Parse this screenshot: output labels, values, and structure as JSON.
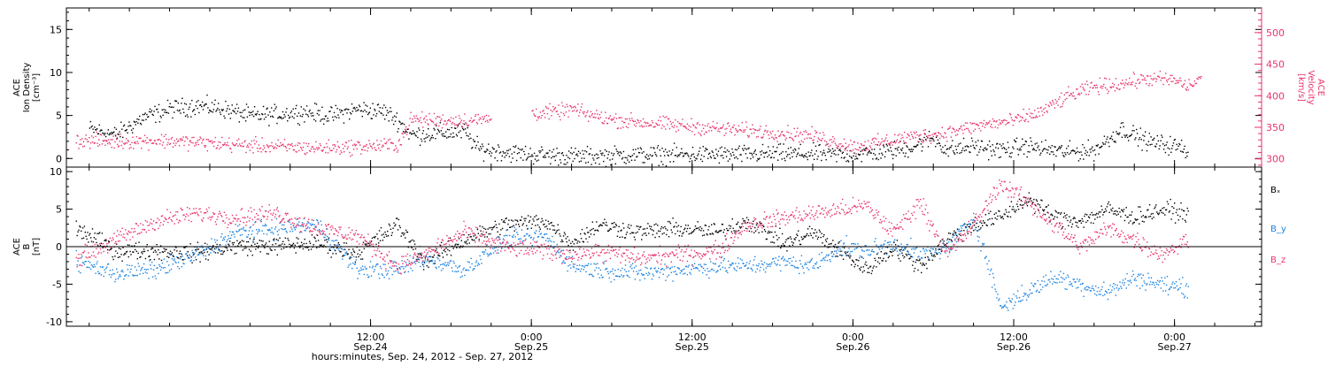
{
  "colors": {
    "black": "#000000",
    "pink": "#e8336a",
    "blue": "#1a82e0",
    "axis": "#000000"
  },
  "time_axis": {
    "label": "hours:minutes, Sep. 24, 2012 - Sep. 27, 2012",
    "start_hour": 0,
    "end_hour": 0,
    "ticks": [
      {
        "hour": 12,
        "time": "12:00",
        "date": "Sep.24"
      },
      {
        "hour": 24,
        "time": "0:00",
        "date": "Sep.25"
      },
      {
        "hour": 36,
        "time": "12:00",
        "date": "Sep.25"
      },
      {
        "hour": 48,
        "time": "0:00",
        "date": "Sep.26"
      },
      {
        "hour": 60,
        "time": "12:00",
        "date": "Sep.26"
      },
      {
        "hour": 72,
        "time": "0:00",
        "date": "Sep.27"
      }
    ]
  },
  "chart_data": [
    {
      "type": "scatter",
      "panel": "top",
      "x_domain_hours": [
        -10.7,
        78.5
      ],
      "left_axis": {
        "label_lines": [
          "ACE",
          "Ion Density",
          "[cm⁻³]"
        ],
        "ylim": [
          -1,
          17.5
        ],
        "ticks": [
          0,
          5,
          10,
          15
        ]
      },
      "right_axis": {
        "label_lines": [
          "ACE",
          "Velocity",
          "[km/s]"
        ],
        "ylim": [
          287,
          539
        ],
        "ticks": [
          300,
          350,
          400,
          450,
          500
        ]
      },
      "series": [
        {
          "name": "",
          "axis": "left",
          "color": "black",
          "points": [
            [
              -9,
              3.5
            ],
            [
              -7,
              2.8
            ],
            [
              -5,
              4.8
            ],
            [
              -3,
              5.8
            ],
            [
              -1,
              6.2
            ],
            [
              1,
              5.8
            ],
            [
              3,
              5.0
            ],
            [
              5,
              5.2
            ],
            [
              7,
              5.5
            ],
            [
              9,
              5.0
            ],
            [
              11,
              5.8
            ],
            [
              13,
              5.5
            ],
            [
              14,
              4.5
            ],
            [
              15,
              2.8
            ],
            [
              17,
              3.0
            ],
            [
              19,
              3.2
            ],
            [
              20,
              1.2
            ],
            [
              22,
              0.8
            ],
            [
              24,
              0.5
            ],
            [
              26,
              0.4
            ],
            [
              27,
              0.3
            ],
            [
              28,
              0.3
            ],
            [
              30,
              0.4
            ],
            [
              33,
              0.5
            ],
            [
              36,
              0.5
            ],
            [
              39,
              0.5
            ],
            [
              42,
              0.6
            ],
            [
              45,
              0.6
            ],
            [
              48,
              0.5
            ],
            [
              50,
              0.8
            ],
            [
              52,
              1.2
            ],
            [
              54,
              2.5
            ],
            [
              55,
              1.0
            ],
            [
              57,
              1.5
            ],
            [
              59,
              1.0
            ],
            [
              61,
              1.5
            ],
            [
              62,
              1.2
            ],
            [
              64,
              0.8
            ],
            [
              66,
              1.0
            ],
            [
              68,
              3.5
            ],
            [
              70,
              2.0
            ],
            [
              72,
              1.5
            ],
            [
              73,
              1.0
            ]
          ]
        },
        {
          "name": "",
          "axis": "right",
          "color": "pink",
          "points": [
            [
              -10,
              330
            ],
            [
              -7,
              328
            ],
            [
              -4,
              330
            ],
            [
              -1,
              327
            ],
            [
              2,
              323
            ],
            [
              5,
              320
            ],
            [
              8,
              318
            ],
            [
              11,
              320
            ],
            [
              14,
              323
            ],
            [
              15,
              363
            ],
            [
              17,
              362
            ],
            [
              20,
              362
            ],
            [
              23,
              372
            ],
            [
              26,
              375
            ],
            [
              27,
              380
            ],
            [
              28,
              372
            ],
            [
              30,
              363
            ],
            [
              33,
              357
            ],
            [
              36,
              352
            ],
            [
              39,
              347
            ],
            [
              42,
              343
            ],
            [
              45,
              337
            ],
            [
              48,
              320
            ],
            [
              50,
              327
            ],
            [
              52,
              335
            ],
            [
              54,
              339
            ],
            [
              56,
              347
            ],
            [
              58,
              356
            ],
            [
              60,
              361
            ],
            [
              62,
              375
            ],
            [
              64,
              400
            ],
            [
              66,
              415
            ],
            [
              68,
              420
            ],
            [
              70,
              428
            ],
            [
              72,
              425
            ],
            [
              73,
              415
            ],
            [
              74,
              430
            ]
          ]
        }
      ]
    },
    {
      "type": "scatter",
      "panel": "bottom",
      "x_domain_hours": [
        -10.7,
        78.5
      ],
      "left_axis": {
        "label_lines": [
          "ACE",
          "B",
          "[nT]"
        ],
        "ylim": [
          -10.6,
          10.6
        ],
        "ticks": [
          -10,
          -5,
          0,
          5,
          10
        ]
      },
      "series": [
        {
          "name": "Bₓ",
          "color": "black",
          "points": [
            [
              -10,
              2.5
            ],
            [
              -7,
              -0.5
            ],
            [
              -4,
              -0.5
            ],
            [
              -1,
              -0.8
            ],
            [
              2,
              0.2
            ],
            [
              5,
              0.2
            ],
            [
              8,
              0.5
            ],
            [
              11,
              -0.8
            ],
            [
              14,
              3.0
            ],
            [
              16,
              -2.0
            ],
            [
              19,
              1.0
            ],
            [
              22,
              3.0
            ],
            [
              25,
              3.5
            ],
            [
              27,
              0.5
            ],
            [
              29,
              3.0
            ],
            [
              32,
              2.0
            ],
            [
              35,
              2.5
            ],
            [
              38,
              2.0
            ],
            [
              40,
              3.5
            ],
            [
              43,
              0.5
            ],
            [
              45,
              2.0
            ],
            [
              47,
              -0.5
            ],
            [
              49,
              -3.0
            ],
            [
              51,
              0.0
            ],
            [
              53,
              -2.5
            ],
            [
              55,
              1.0
            ],
            [
              57,
              3.0
            ],
            [
              59,
              4.0
            ],
            [
              61,
              6.5
            ],
            [
              63,
              4.0
            ],
            [
              65,
              3.5
            ],
            [
              67,
              5.0
            ],
            [
              69,
              4.0
            ],
            [
              71,
              5.0
            ],
            [
              73,
              4.5
            ]
          ]
        },
        {
          "name": "B_y",
          "color": "blue",
          "points": [
            [
              -10,
              -2.0
            ],
            [
              -7,
              -3.5
            ],
            [
              -4,
              -3.0
            ],
            [
              -1,
              -1.0
            ],
            [
              2,
              2.0
            ],
            [
              5,
              2.5
            ],
            [
              8,
              3.0
            ],
            [
              11,
              -3.0
            ],
            [
              14,
              -3.0
            ],
            [
              16,
              -1.5
            ],
            [
              19,
              -3.0
            ],
            [
              22,
              1.0
            ],
            [
              25,
              1.5
            ],
            [
              27,
              -2.5
            ],
            [
              29,
              -3.0
            ],
            [
              32,
              -3.5
            ],
            [
              35,
              -3.0
            ],
            [
              38,
              -2.5
            ],
            [
              40,
              -2.5
            ],
            [
              43,
              -2.0
            ],
            [
              45,
              -2.5
            ],
            [
              47,
              0.0
            ],
            [
              49,
              -0.5
            ],
            [
              51,
              0.5
            ],
            [
              53,
              -1.0
            ],
            [
              55,
              0.0
            ],
            [
              57,
              4.0
            ],
            [
              59,
              -8.0
            ],
            [
              61,
              -6.0
            ],
            [
              63,
              -4.0
            ],
            [
              65,
              -5.0
            ],
            [
              67,
              -6.0
            ],
            [
              69,
              -4.0
            ],
            [
              71,
              -5.0
            ],
            [
              73,
              -5.5
            ]
          ]
        },
        {
          "name": "B_z",
          "color": "pink",
          "points": [
            [
              -10,
              -1.5
            ],
            [
              -7,
              1.0
            ],
            [
              -4,
              3.5
            ],
            [
              -1,
              4.5
            ],
            [
              2,
              4.0
            ],
            [
              5,
              4.5
            ],
            [
              8,
              2.5
            ],
            [
              11,
              1.5
            ],
            [
              14,
              -2.5
            ],
            [
              16,
              -1.0
            ],
            [
              19,
              2.0
            ],
            [
              22,
              0.0
            ],
            [
              25,
              -0.5
            ],
            [
              27,
              -1.0
            ],
            [
              29,
              -0.5
            ],
            [
              32,
              -1.5
            ],
            [
              35,
              -1.0
            ],
            [
              38,
              -0.5
            ],
            [
              40,
              3.0
            ],
            [
              43,
              4.0
            ],
            [
              45,
              4.5
            ],
            [
              47,
              5.0
            ],
            [
              49,
              5.5
            ],
            [
              51,
              2.0
            ],
            [
              53,
              6.0
            ],
            [
              55,
              -1.0
            ],
            [
              57,
              3.0
            ],
            [
              59,
              8.5
            ],
            [
              61,
              6.0
            ],
            [
              63,
              3.0
            ],
            [
              65,
              0.0
            ],
            [
              67,
              2.5
            ],
            [
              69,
              1.0
            ],
            [
              71,
              -1.0
            ],
            [
              73,
              1.0
            ]
          ]
        }
      ]
    }
  ]
}
